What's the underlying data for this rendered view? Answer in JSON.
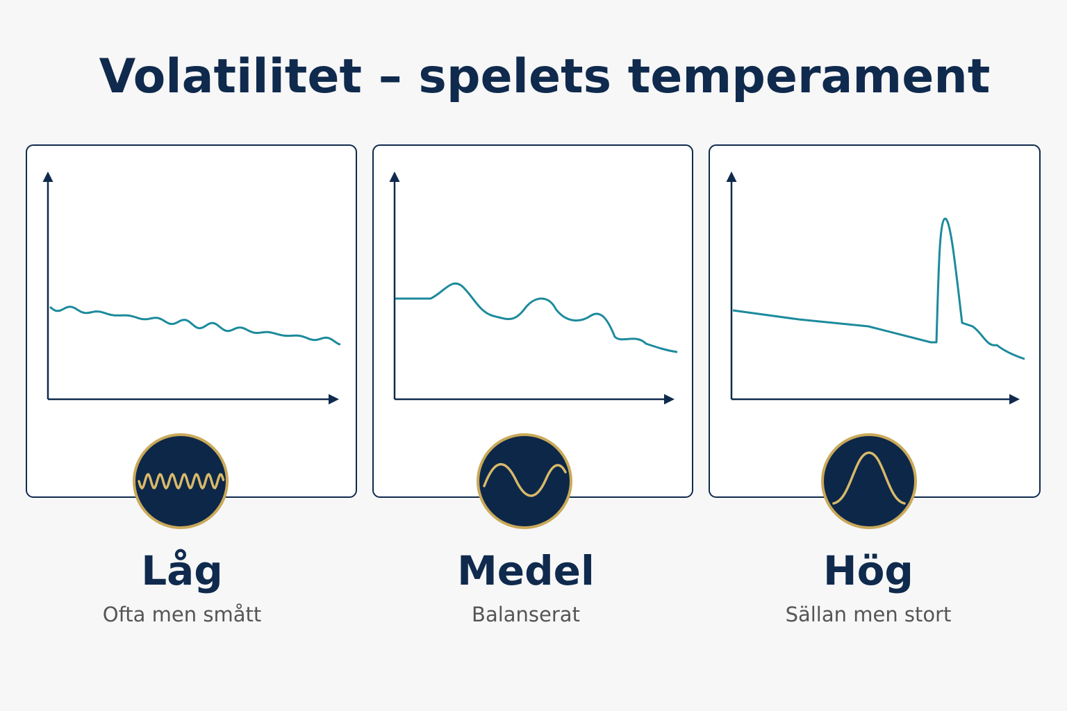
{
  "title": "Volatilitet – spelets temperament",
  "panels": [
    {
      "label": "Låg",
      "caption": "Ofta men smått"
    },
    {
      "label": "Medel",
      "caption": "Balanserat"
    },
    {
      "label": "Hög",
      "caption": "Sällan men stort"
    }
  ]
}
